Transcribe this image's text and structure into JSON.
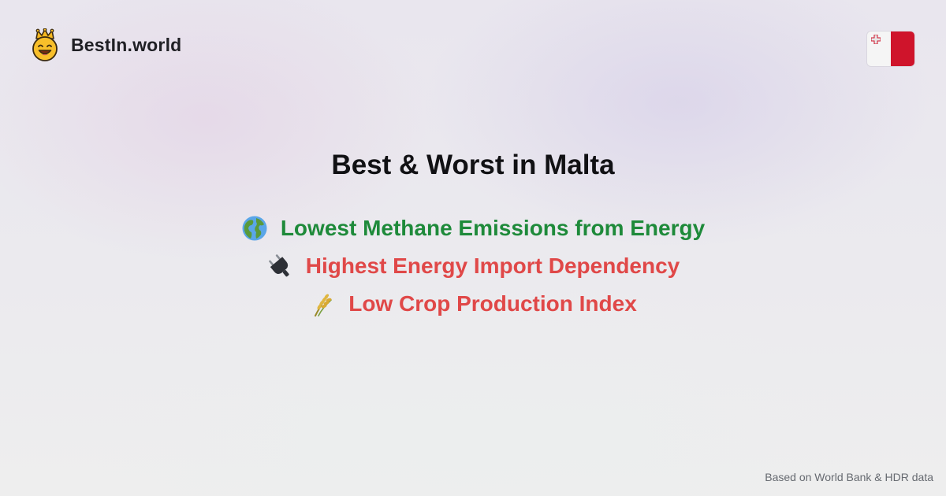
{
  "brand": {
    "name": "BestIn.world",
    "icon": "crowned-smiley-icon"
  },
  "flag": {
    "icon": "malta-flag-icon",
    "colors": {
      "white": "#f5f5f5",
      "red": "#cf142b"
    }
  },
  "title": "Best & Worst in Malta",
  "rankings": [
    {
      "icon": "globe-icon",
      "label": "Lowest Methane Emissions from Energy",
      "type": "best",
      "color": "#1e8a3a"
    },
    {
      "icon": "plug-icon",
      "label": "Highest Energy Import Dependency",
      "type": "worst",
      "color": "#e04848"
    },
    {
      "icon": "wheat-icon",
      "label": "Low Crop Production Index",
      "type": "worst",
      "color": "#e04848"
    }
  ],
  "footer": {
    "source": "Based on World Bank & HDR data"
  }
}
